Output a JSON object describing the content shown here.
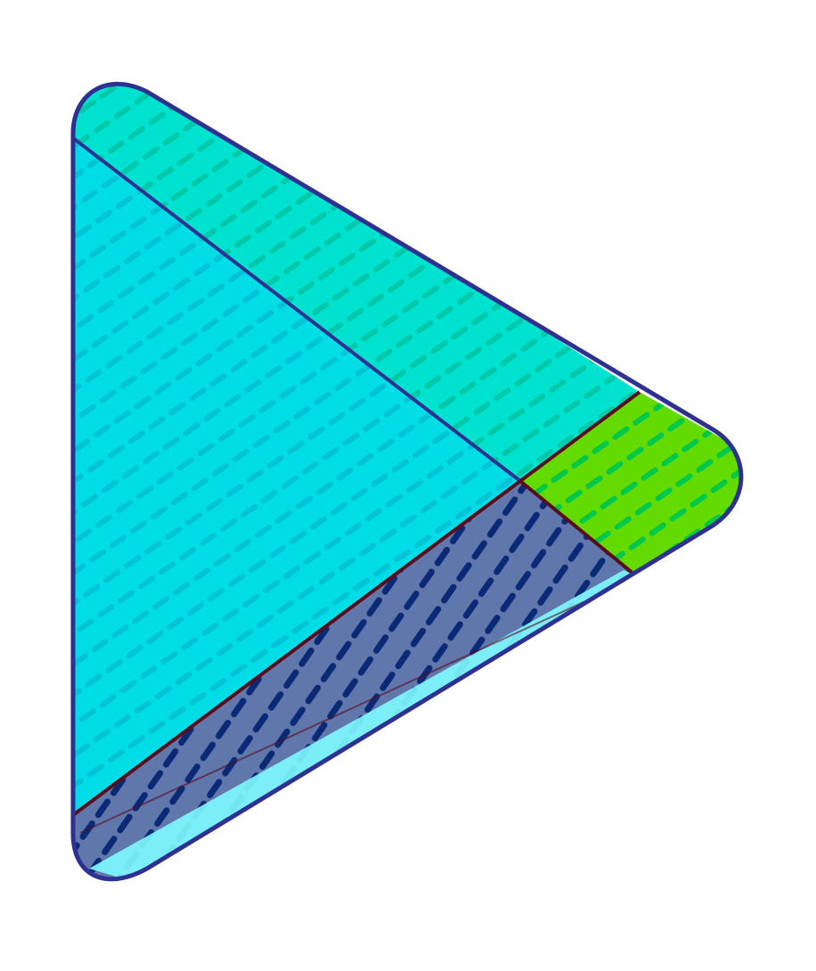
{
  "logo": {
    "icon": "play-triangle-logo-icon",
    "segments": [
      {
        "name": "top-segment",
        "color": "#00E2D0"
      },
      {
        "name": "left-segment",
        "color": "#00DDE6"
      },
      {
        "name": "right-segment",
        "color": "#64DB00"
      },
      {
        "name": "bottom-segment",
        "color": "#5F77AB"
      }
    ],
    "outline_color": "#2E3192",
    "edge_color": "#5A0C1C",
    "highlight_color": "#7FFBFF",
    "dash_colors": {
      "top": "#00C8A8",
      "left": "#00C3D8",
      "right": "#00C84A",
      "bottom": "#0A2A78"
    }
  }
}
